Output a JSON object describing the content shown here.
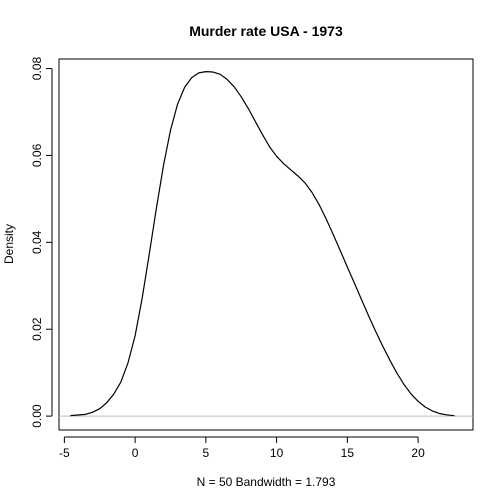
{
  "chart_data": {
    "type": "line",
    "title": "Murder rate USA - 1973",
    "xlabel": "N = 50   Bandwidth = 1.793",
    "ylabel": "Density",
    "xlim": [
      -5.38,
      23.88
    ],
    "ylim": [
      -0.0032,
      0.0822
    ],
    "x_ticks": [
      -5,
      0,
      5,
      10,
      15,
      20
    ],
    "x_tick_labels": [
      "-5",
      "0",
      "5",
      "10",
      "15",
      "20"
    ],
    "y_ticks": [
      0,
      0.02,
      0.04,
      0.06,
      0.08
    ],
    "y_tick_labels": [
      "0.00",
      "0.02",
      "0.04",
      "0.06",
      "0.08"
    ],
    "grid": false,
    "baseline": {
      "y": 0,
      "color": "#bebebe"
    },
    "series": [
      {
        "color": "#000000",
        "x": [
          -4.57,
          -3.5,
          -3.0,
          -2.5,
          -2.0,
          -1.5,
          -1.0,
          -0.5,
          0.0,
          0.5,
          1.0,
          1.5,
          2.0,
          2.5,
          3.0,
          3.5,
          4.0,
          4.5,
          5.0,
          5.5,
          6.0,
          6.5,
          7.0,
          7.5,
          8.0,
          8.5,
          9.0,
          9.5,
          10.0,
          10.5,
          11.0,
          11.5,
          12.0,
          12.5,
          13.0,
          13.5,
          14.0,
          14.5,
          15.0,
          15.5,
          16.0,
          16.5,
          17.0,
          17.5,
          18.0,
          18.5,
          19.0,
          19.5,
          20.0,
          20.5,
          21.0,
          21.5,
          22.0,
          22.57
        ],
        "y": [
          0.0001,
          0.0004,
          0.0009,
          0.0017,
          0.0031,
          0.0051,
          0.0079,
          0.0123,
          0.0185,
          0.0272,
          0.0373,
          0.0478,
          0.0576,
          0.0658,
          0.0718,
          0.0757,
          0.0779,
          0.079,
          0.0793,
          0.0792,
          0.0787,
          0.0775,
          0.0758,
          0.0735,
          0.0708,
          0.0678,
          0.0648,
          0.062,
          0.0598,
          0.0581,
          0.0567,
          0.0553,
          0.0537,
          0.0515,
          0.0487,
          0.0454,
          0.0418,
          0.0381,
          0.0343,
          0.0306,
          0.0268,
          0.0231,
          0.0195,
          0.0161,
          0.0129,
          0.0099,
          0.0073,
          0.0051,
          0.0034,
          0.0021,
          0.0012,
          0.0006,
          0.0003,
          0.0001
        ]
      }
    ]
  }
}
